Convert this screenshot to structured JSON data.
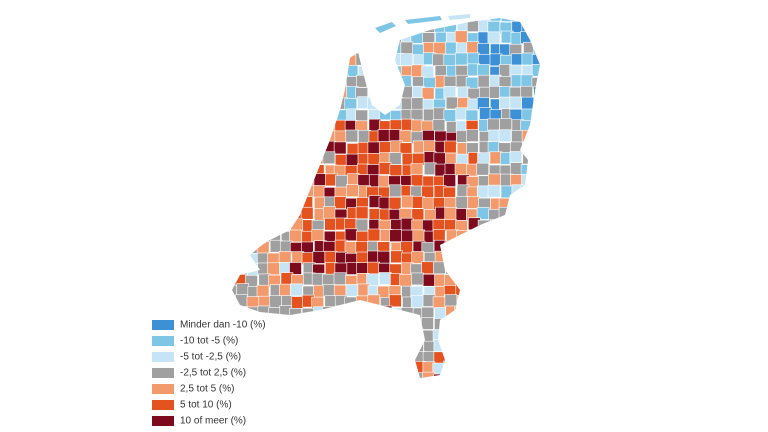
{
  "legend": {
    "items": [
      {
        "label": "Minder dan -10 (%)",
        "color": "#3d8fd6"
      },
      {
        "label": "-10 tot -5 (%)",
        "color": "#7fc6e6"
      },
      {
        "label": "-5 tot -2,5 (%)",
        "color": "#c5e5f7"
      },
      {
        "label": "-2,5 tot 2,5 (%)",
        "color": "#a0a0a0"
      },
      {
        "label": "2,5 tot 5 (%)",
        "color": "#f29a6b"
      },
      {
        "label": "5 tot 10 (%)",
        "color": "#e4531f"
      },
      {
        "label": "10 of meer (%)",
        "color": "#7e0a1e"
      }
    ]
  }
}
